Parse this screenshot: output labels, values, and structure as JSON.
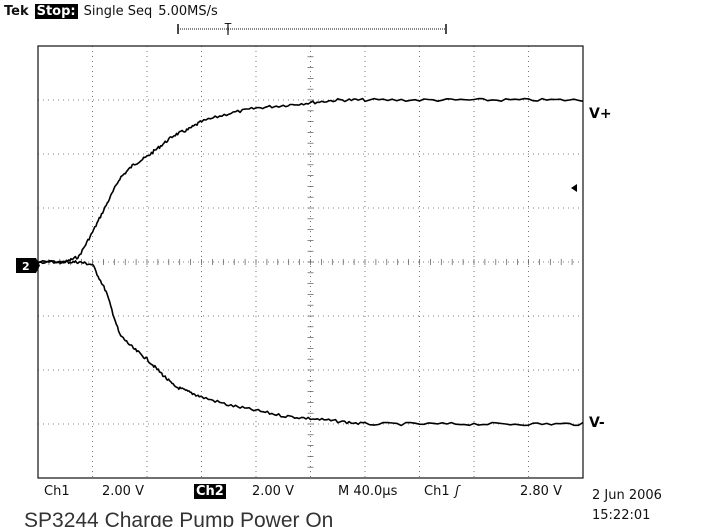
{
  "status_bar": {
    "brand": "Tek",
    "state": "Stop:",
    "mode": "Single Seq",
    "sample_rate": "5.00MS/s",
    "trigger_marker": "T"
  },
  "readout": {
    "ch1_label": "Ch1",
    "ch1_scale": "2.00 V",
    "ch2_label": "Ch2",
    "ch2_scale": "2.00 V",
    "timebase": "M 40.0µs",
    "trigger_source": "Ch1",
    "trigger_slope": "ʃ",
    "trigger_level": "2.80 V"
  },
  "timestamp": {
    "date": "2 Jun 2006",
    "time": "15:22:01"
  },
  "caption": "SP3244 Charge Pump Power On",
  "ground_marker": "2",
  "chart_data": {
    "type": "line",
    "title": "SP3244 Charge Pump Power On",
    "xlabel": "",
    "ylabel": "",
    "x_unit": "µs",
    "y_unit": "V",
    "xlim": [
      0,
      400
    ],
    "ylim": [
      -8,
      8
    ],
    "grid": true,
    "grid_divisions": {
      "x": 10,
      "y": 8
    },
    "series": [
      {
        "name": "V+",
        "x": [
          0,
          20,
          30,
          40,
          50,
          60,
          70,
          80,
          90,
          100,
          110,
          120,
          140,
          160,
          180,
          200,
          220,
          240,
          280,
          320,
          360,
          400
        ],
        "y": [
          0,
          0,
          0.2,
          1.1,
          2.1,
          3.1,
          3.6,
          3.9,
          4.3,
          4.7,
          4.9,
          5.2,
          5.5,
          5.7,
          5.8,
          5.9,
          6.0,
          6.0,
          6.0,
          6.0,
          6.0,
          6.0
        ]
      },
      {
        "name": "V-",
        "x": [
          0,
          20,
          30,
          40,
          50,
          60,
          70,
          80,
          90,
          100,
          110,
          120,
          140,
          160,
          180,
          200,
          220,
          240,
          280,
          320,
          360,
          400
        ],
        "y": [
          0,
          0,
          0,
          -0.1,
          -1.1,
          -2.7,
          -3.2,
          -3.6,
          -4.1,
          -4.6,
          -4.8,
          -5.0,
          -5.3,
          -5.5,
          -5.7,
          -5.8,
          -5.9,
          -6.0,
          -6.0,
          -6.0,
          -6.0,
          -6.0
        ]
      }
    ]
  }
}
